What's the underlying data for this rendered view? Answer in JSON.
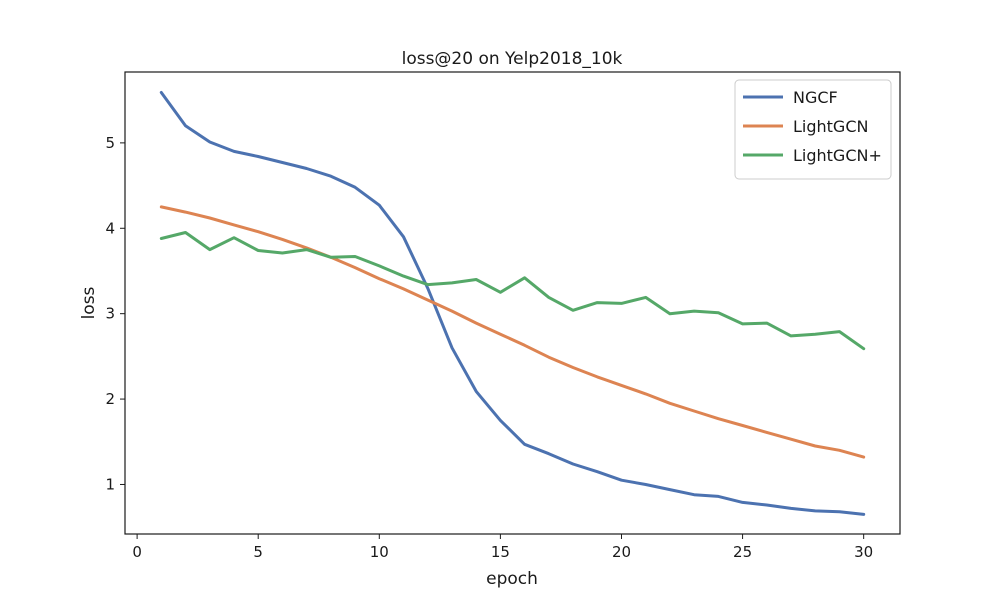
{
  "chart_data": {
    "type": "line",
    "title": "loss@20 on Yelp2018_10k",
    "xlabel": "epoch",
    "ylabel": "loss",
    "xlim": [
      -0.5,
      31.5
    ],
    "ylim": [
      0.42,
      5.83
    ],
    "xticks": [
      0,
      5,
      10,
      15,
      20,
      25,
      30
    ],
    "yticks": [
      1,
      2,
      3,
      4,
      5
    ],
    "grid": false,
    "legend_position": "top-right",
    "x": [
      1,
      2,
      3,
      4,
      5,
      6,
      7,
      8,
      9,
      10,
      11,
      12,
      13,
      14,
      15,
      16,
      17,
      18,
      19,
      20,
      21,
      22,
      23,
      24,
      25,
      26,
      27,
      28,
      29,
      30
    ],
    "series": [
      {
        "name": "NGCF",
        "color": "#4c72b0",
        "values": [
          5.59,
          5.2,
          5.01,
          4.9,
          4.84,
          4.77,
          4.7,
          4.61,
          4.48,
          4.27,
          3.9,
          3.3,
          2.6,
          2.09,
          1.75,
          1.47,
          1.36,
          1.24,
          1.15,
          1.05,
          1.0,
          0.94,
          0.88,
          0.86,
          0.79,
          0.76,
          0.72,
          0.69,
          0.68,
          0.65
        ]
      },
      {
        "name": "LightGCN",
        "color": "#dd8452",
        "values": [
          4.25,
          4.19,
          4.12,
          4.04,
          3.96,
          3.87,
          3.77,
          3.66,
          3.54,
          3.41,
          3.29,
          3.16,
          3.03,
          2.89,
          2.76,
          2.63,
          2.49,
          2.37,
          2.26,
          2.16,
          2.06,
          1.95,
          1.86,
          1.77,
          1.69,
          1.61,
          1.53,
          1.45,
          1.4,
          1.32
        ]
      },
      {
        "name": "LightGCN+",
        "color": "#55a868",
        "values": [
          3.88,
          3.95,
          3.75,
          3.89,
          3.74,
          3.71,
          3.75,
          3.66,
          3.67,
          3.56,
          3.44,
          3.34,
          3.36,
          3.4,
          3.25,
          3.42,
          3.19,
          3.04,
          3.13,
          3.12,
          3.19,
          3.0,
          3.03,
          3.01,
          2.88,
          2.89,
          2.74,
          2.76,
          2.79,
          2.59
        ]
      }
    ]
  }
}
